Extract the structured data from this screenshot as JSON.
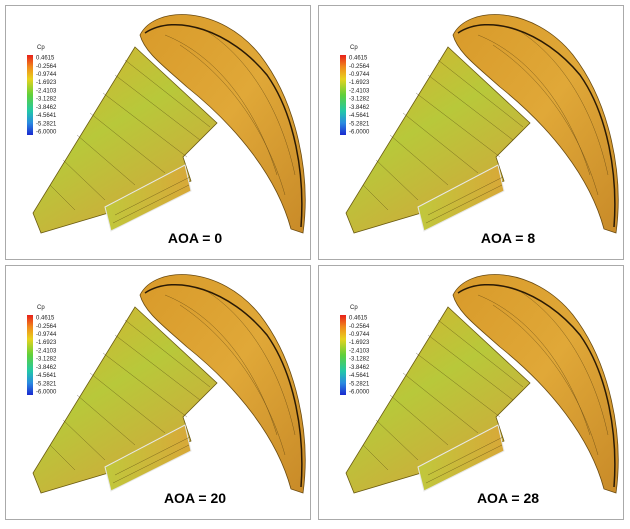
{
  "panels": [
    {
      "legend": {
        "title": "Cp",
        "ticks": [
          "0.4615",
          "-0.2564",
          "-0.9744",
          "-1.6923",
          "-2.4103",
          "-3.1282",
          "-3.8462",
          "-4.5641",
          "-5.2821",
          "-6.0000"
        ]
      },
      "label": "AOA = 0"
    },
    {
      "legend": {
        "title": "Cp",
        "ticks": [
          "0.4615",
          "-0.2564",
          "-0.9744",
          "-1.6923",
          "-2.4103",
          "-3.1282",
          "-3.8462",
          "-4.5641",
          "-5.2821",
          "-6.0000"
        ]
      },
      "label": "AOA = 8"
    },
    {
      "legend": {
        "title": "Cp",
        "ticks": [
          "0.4615",
          "-0.2564",
          "-0.9744",
          "-1.6923",
          "-2.4103",
          "-3.1282",
          "-3.8462",
          "-4.5641",
          "-5.2821",
          "-6.0000"
        ]
      },
      "label": "AOA = 20"
    },
    {
      "legend": {
        "title": "Cp",
        "ticks": [
          "0.4615",
          "-0.2564",
          "-0.9744",
          "-1.6923",
          "-2.4103",
          "-3.1282",
          "-3.8462",
          "-4.5641",
          "-5.2821",
          "-6.0000"
        ]
      },
      "label": "AOA = 28"
    }
  ]
}
